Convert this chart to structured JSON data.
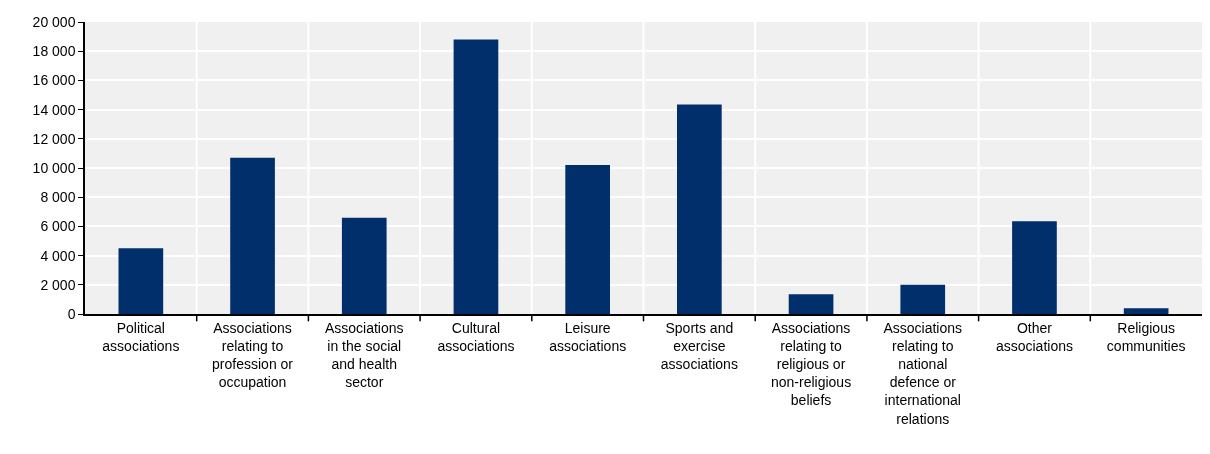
{
  "chart_data": {
    "type": "bar",
    "categories": [
      "Political associations",
      "Associations relating to profession or occupation",
      "Associations in the social and health sector",
      "Cultural associations",
      "Leisure associations",
      "Sports and exercise associations",
      "Associations relating to religious or non-religious beliefs",
      "Associations relating to national defence or international relations",
      "Other associations",
      "Religious communities"
    ],
    "values": [
      4500,
      10700,
      6600,
      18800,
      10200,
      14350,
      1350,
      2000,
      6350,
      400
    ],
    "color": "#002f6c",
    "ylim": [
      0,
      20000
    ],
    "yticks": [
      {
        "value": 0,
        "label": "0"
      },
      {
        "value": 2000,
        "label": "2 000"
      },
      {
        "value": 4000,
        "label": "4 000"
      },
      {
        "value": 6000,
        "label": "6 000"
      },
      {
        "value": 8000,
        "label": "8 000"
      },
      {
        "value": 10000,
        "label": "10 000"
      },
      {
        "value": 12000,
        "label": "12 000"
      },
      {
        "value": 14000,
        "label": "14 000"
      },
      {
        "value": 16000,
        "label": "16 000"
      },
      {
        "value": 18000,
        "label": "18 000"
      },
      {
        "value": 20000,
        "label": "20 000"
      }
    ],
    "grid": true
  }
}
